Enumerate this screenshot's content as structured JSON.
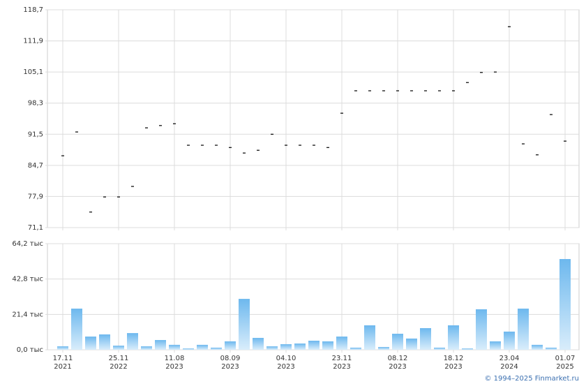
{
  "chart_data": [
    {
      "type": "scatter",
      "color": "#000000",
      "values": [
        86.8,
        92.0,
        74.5,
        77.8,
        77.8,
        80.1,
        92.9,
        93.4,
        93.8,
        89.1,
        89.1,
        89.1,
        88.6,
        87.4,
        88.0,
        91.5,
        89.1,
        89.1,
        89.1,
        88.6,
        96.1,
        101.0,
        101.0,
        101.0,
        101.0,
        101.0,
        101.0,
        101.0,
        101.0,
        102.8,
        105.0,
        105.1,
        115.0,
        89.4,
        87.0,
        95.8,
        90.0
      ],
      "ylim": [
        71.1,
        118.7
      ],
      "yticks": [
        {
          "value": 71.1,
          "label": "71,1"
        },
        {
          "value": 77.9,
          "label": "77,9"
        },
        {
          "value": 84.7,
          "label": "84,7"
        },
        {
          "value": 91.5,
          "label": "91,5"
        },
        {
          "value": 98.3,
          "label": "98,3"
        },
        {
          "value": 105.1,
          "label": "105,1"
        },
        {
          "value": 111.9,
          "label": "111,9"
        },
        {
          "value": 118.7,
          "label": "118,7"
        }
      ],
      "grid": true
    },
    {
      "type": "bar",
      "color": "#7dbfef",
      "categories": [
        [
          "17.11",
          "2021"
        ],
        null,
        null,
        null,
        [
          "25.11",
          "2022"
        ],
        null,
        null,
        null,
        [
          "11.08",
          "2023"
        ],
        null,
        null,
        null,
        [
          "08.09",
          "2023"
        ],
        null,
        null,
        null,
        [
          "04.10",
          "2023"
        ],
        null,
        null,
        null,
        [
          "23.11",
          "2023"
        ],
        null,
        null,
        null,
        [
          "08.12",
          "2023"
        ],
        null,
        null,
        null,
        [
          "18.12",
          "2023"
        ],
        null,
        null,
        null,
        [
          "23.04",
          "2024"
        ],
        null,
        null,
        null,
        [
          "01.07",
          "2025"
        ]
      ],
      "values": [
        2.1,
        24.9,
        8.0,
        9.3,
        2.5,
        10.1,
        2.1,
        5.9,
        3.0,
        0.8,
        3.0,
        1.3,
        5.1,
        30.8,
        7.2,
        2.1,
        3.4,
        3.8,
        5.5,
        5.1,
        8.0,
        1.3,
        14.8,
        1.7,
        9.7,
        6.8,
        13.1,
        1.3,
        14.8,
        0.8,
        24.5,
        5.1,
        11.0,
        24.9,
        3.0,
        1.3,
        54.9
      ],
      "ylim": [
        0,
        64.2
      ],
      "yticks": [
        {
          "value": 0,
          "label": "0,0 тыс"
        },
        {
          "value": 21.4,
          "label": "21,4 тыс"
        },
        {
          "value": 42.8,
          "label": "42,8 тыс"
        },
        {
          "value": 64.2,
          "label": "64,2 тыс"
        }
      ],
      "grid": true
    }
  ],
  "footer": "© 1994–2025 Finmarket.ru"
}
